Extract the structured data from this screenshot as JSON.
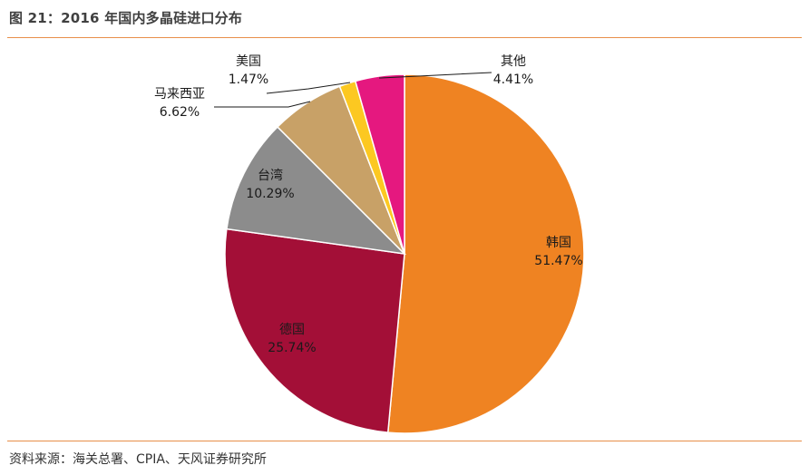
{
  "title": "图 21：2016 年国内多晶硅进口分布",
  "source": "资料来源：海关总署、CPIA、天风证券研究所",
  "chart_data": {
    "type": "pie",
    "title": "",
    "slices": [
      {
        "label": "韩国",
        "value": 51.47,
        "display": "51.47%",
        "color": "#ef8322"
      },
      {
        "label": "德国",
        "value": 25.74,
        "display": "25.74%",
        "color": "#a30f37"
      },
      {
        "label": "台湾",
        "value": 10.29,
        "display": "10.29%",
        "color": "#8c8c8c"
      },
      {
        "label": "马来西亚",
        "value": 6.62,
        "display": "6.62%",
        "color": "#c8a167"
      },
      {
        "label": "美国",
        "value": 1.47,
        "display": "1.47%",
        "color": "#fcc821"
      },
      {
        "label": "其他",
        "value": 4.41,
        "display": "4.41%",
        "color": "#e5187f"
      }
    ],
    "start": "12 o'clock",
    "direction": "clockwise"
  }
}
